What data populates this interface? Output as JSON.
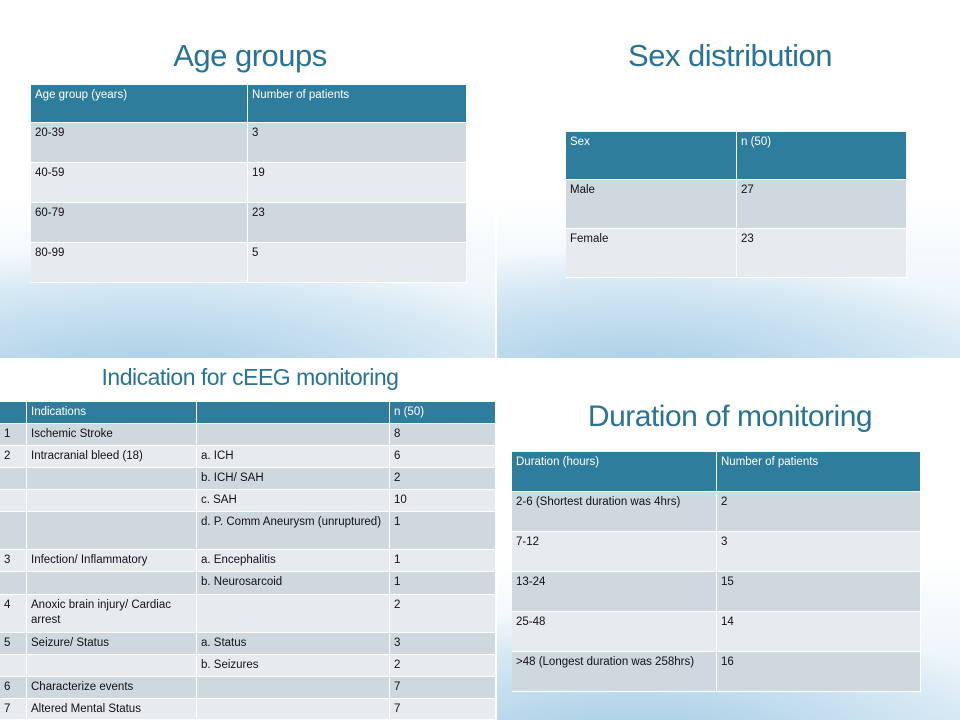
{
  "age_groups": {
    "title": "Age groups",
    "table": {
      "header": [
        "Age group (years)",
        "Number of patients"
      ],
      "rows": [
        [
          "20-39",
          3
        ],
        [
          "40-59",
          19
        ],
        [
          "60-79",
          23
        ],
        [
          "80-99",
          5
        ]
      ]
    }
  },
  "sex_distribution": {
    "title": "Sex distribution",
    "table": {
      "header": [
        "Sex",
        "n (50)"
      ],
      "rows": [
        [
          "Male",
          27
        ],
        [
          "Female",
          23
        ]
      ]
    }
  },
  "indications": {
    "title": "Indication for cEEG monitoring",
    "table": {
      "header": [
        null,
        "Indications",
        null,
        "n (50)"
      ],
      "rows": [
        [
          1,
          "Ischemic Stroke",
          null,
          8
        ],
        [
          2,
          "Intracranial bleed (18)",
          "a. ICH",
          6
        ],
        [
          null,
          null,
          "b. ICH/ SAH",
          2
        ],
        [
          null,
          null,
          "c. SAH",
          10
        ],
        [
          null,
          null,
          "d. P. Comm Aneurysm (unruptured)",
          1
        ],
        [
          3,
          "Infection/ Inflammatory",
          "a. Encephalitis",
          1
        ],
        [
          null,
          null,
          "b. Neurosarcoid",
          1
        ],
        [
          4,
          "Anoxic brain injury/ Cardiac arrest",
          null,
          2
        ],
        [
          5,
          "Seizure/ Status",
          "a. Status",
          3
        ],
        [
          null,
          null,
          "b. Seizures",
          2
        ],
        [
          6,
          "Characterize events",
          null,
          7
        ],
        [
          7,
          "Altered Mental Status",
          null,
          7
        ]
      ]
    }
  },
  "duration": {
    "title": "Duration of monitoring",
    "table": {
      "header": [
        "Duration (hours)",
        "Number of patients"
      ],
      "rows": [
        [
          "2-6 (Shortest duration was 4hrs)",
          2
        ],
        [
          "7-12",
          3
        ],
        [
          "13-24",
          15
        ],
        [
          "25-48",
          14
        ],
        [
          ">48 (Longest duration was 258hrs)",
          16
        ]
      ]
    }
  }
}
